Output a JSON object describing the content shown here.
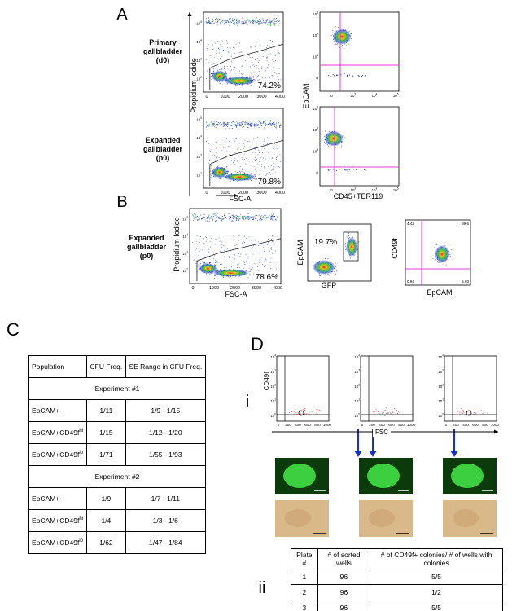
{
  "panels": {
    "A": {
      "label": "A",
      "y_axis": "Propidium Iodide",
      "x_axis": "FSC-A",
      "x_ticks": [
        "0",
        "1000",
        "2000",
        "3000",
        "4000"
      ],
      "marker_y_axis": "EpCAM",
      "marker_x_axis": "CD45+TER119",
      "rows": [
        {
          "sample": [
            "Primary",
            "gallbladder",
            "(d0)"
          ],
          "gate": "74.2%"
        },
        {
          "sample": [
            "Expanded",
            "gallbladder",
            "(p0)"
          ],
          "gate": "79.8%"
        }
      ]
    },
    "B": {
      "label": "B",
      "sample": [
        "Expanded",
        "gallbladder",
        "(p0)"
      ],
      "y_axis": "Propidium Iodide",
      "x_axis": "FSC-A",
      "x_ticks": [
        "0",
        "1000",
        "2000",
        "3000",
        "4000"
      ],
      "gate": "78.6%",
      "gfp_plot": {
        "y_axis": "EpCAM",
        "x_axis": "GFP",
        "gate": "19.7%"
      },
      "quadrant_plot": {
        "y_axis": "CD49f",
        "x_axis": "EpCAM",
        "quadrants": [
          "4.42",
          "89.6",
          "0.94",
          "5.03"
        ]
      }
    },
    "C": {
      "label": "C",
      "table": {
        "header": [
          "Population",
          "CFU Freq.",
          "SE Range in CFU Freq."
        ],
        "sections": [
          {
            "title": "Experiment #1",
            "rows": [
              [
                {
                  "text": "EpCAM+"
                },
                "1/11",
                "1/9 - 1/15"
              ],
              [
                {
                  "text": "EpCAM+CD49f",
                  "sup": "hi"
                },
                "1/15",
                "1/12 - 1/20"
              ],
              [
                {
                  "text": "EpCAM+CD49f",
                  "sup": "lo"
                },
                "1/71",
                "1/55 - 1/93"
              ]
            ]
          },
          {
            "title": "Experiment #2",
            "rows": [
              [
                {
                  "text": "EpCAM+"
                },
                "1/9",
                "1/7 - 1/11"
              ],
              [
                {
                  "text": "EpCAM+CD49f",
                  "sup": "hi"
                },
                "1/4",
                "1/3 - 1/6"
              ],
              [
                {
                  "text": "EpCAM+CD49f",
                  "sup": "lo"
                },
                "1/62",
                "1/47 - 1/84"
              ]
            ]
          }
        ]
      }
    },
    "D": {
      "label": "D",
      "sub_i": "i",
      "sub_ii": "ii",
      "y_axis": "CD49f",
      "x_axis": "FSC",
      "x_ticks": [
        "0",
        "200",
        "400",
        "600",
        "800",
        "1000"
      ],
      "y_ticks": [
        {
          "base": "10",
          "exp": "0"
        },
        {
          "base": "10",
          "exp": "1"
        },
        {
          "base": "10",
          "exp": "2"
        },
        {
          "base": "10",
          "exp": "3"
        },
        {
          "base": "10",
          "exp": "4"
        }
      ],
      "table": {
        "header": [
          "Plate #",
          "# of sorted wells",
          "# of CD49f+ colonies/ # of wells with colonies"
        ],
        "rows": [
          [
            "1",
            "96",
            "5/5"
          ],
          [
            "2",
            "96",
            "1/2"
          ],
          [
            "3",
            "96",
            "5/5"
          ]
        ]
      }
    }
  },
  "log_ticks": [
    {
      "base": "10",
      "exp": "2"
    },
    {
      "base": "10",
      "exp": "3"
    },
    {
      "base": "10",
      "exp": "4"
    },
    {
      "base": "10",
      "exp": "5"
    }
  ],
  "marker_ticks": [
    "0",
    {
      "base": "10",
      "exp": "3"
    },
    {
      "base": "10",
      "exp": "4"
    },
    {
      "base": "10",
      "exp": "5"
    }
  ]
}
